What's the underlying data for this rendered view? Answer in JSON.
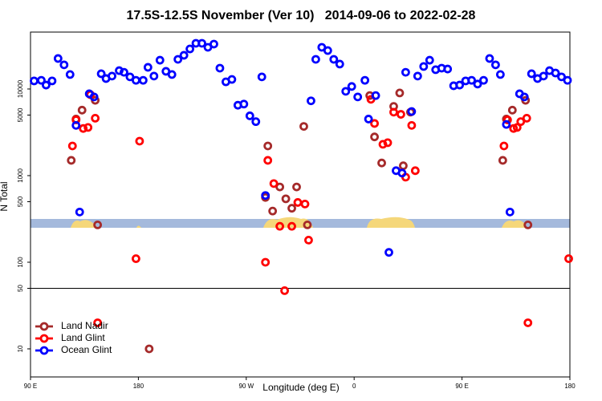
{
  "chart_data": {
    "type": "scatter",
    "title": "17.5S-12.5S November (Ver 10)   2014-09-06 to 2022-02-28",
    "xlabel": "Longitude (deg E)",
    "ylabel": "N Total",
    "xlim": [
      90,
      540
    ],
    "xticks": [
      {
        "value": 90,
        "label": "90 E"
      },
      {
        "value": 180,
        "label": "180"
      },
      {
        "value": 270,
        "label": "90 W"
      },
      {
        "value": 360,
        "label": "0"
      },
      {
        "value": 450,
        "label": "90 E"
      },
      {
        "value": 540,
        "label": "180"
      }
    ],
    "ylim": [
      4.74,
      45400
    ],
    "ylog": true,
    "yticks": [
      10,
      50,
      100,
      500,
      1000,
      5000,
      10000
    ],
    "reference_line": 50,
    "legend": "lower left",
    "series": [
      {
        "name": "Land Nadir",
        "color": "#a52a2a",
        "x": [
          124,
          128,
          133,
          144,
          146,
          189,
          286,
          288,
          292,
          298,
          303,
          308,
          312,
          318,
          321,
          373,
          377,
          383,
          393,
          398,
          401,
          407,
          484,
          487,
          492,
          503,
          505
        ],
        "values": [
          1500,
          4500,
          5700,
          7400,
          270,
          10,
          560,
          2200,
          390,
          740,
          540,
          420,
          740,
          3700,
          270,
          8400,
          2800,
          1400,
          6300,
          9000,
          1300,
          5400,
          1500,
          4500,
          5700,
          7400,
          270
        ]
      },
      {
        "name": "Land Glint",
        "color": "#ff0000",
        "x": [
          125,
          128,
          134,
          138,
          140,
          144,
          146,
          178,
          181,
          286,
          288,
          293,
          298,
          302,
          308,
          313,
          319,
          322,
          374,
          377,
          384,
          388,
          393,
          399,
          403,
          408,
          411,
          485,
          488,
          493,
          496,
          499,
          504,
          505,
          539
        ],
        "values": [
          2200,
          4400,
          3500,
          3600,
          8600,
          4600,
          20,
          110,
          2500,
          100,
          1500,
          810,
          260,
          47,
          260,
          490,
          470,
          180,
          7600,
          4000,
          2300,
          2400,
          5400,
          5100,
          960,
          3800,
          1140,
          2200,
          4400,
          3500,
          3600,
          4200,
          4600,
          20,
          110
        ]
      },
      {
        "name": "Ocean Glint",
        "color": "#0000ff",
        "x": [
          93,
          99,
          103,
          108,
          113,
          118,
          123,
          128,
          131,
          139,
          143,
          149,
          153,
          158,
          164,
          168,
          173,
          178,
          184,
          188,
          193,
          198,
          203,
          208,
          213,
          218,
          223,
          228,
          233,
          238,
          243,
          248,
          253,
          258,
          263,
          268,
          273,
          278,
          283,
          286,
          324,
          328,
          333,
          338,
          343,
          348,
          353,
          358,
          363,
          369,
          372,
          378,
          389,
          395,
          400,
          403,
          408,
          413,
          418,
          423,
          428,
          433,
          438,
          443,
          448,
          453,
          458,
          463,
          468,
          473,
          478,
          482,
          487,
          490,
          498,
          502,
          508,
          513,
          518,
          523,
          528,
          533,
          538
        ],
        "values": [
          12400,
          12600,
          11100,
          12400,
          22500,
          19000,
          14700,
          3800,
          380,
          8800,
          8100,
          15000,
          13200,
          14100,
          16300,
          15600,
          13800,
          12600,
          12600,
          17800,
          14100,
          21500,
          16000,
          14700,
          22000,
          24500,
          29000,
          33700,
          33700,
          30300,
          33000,
          17400,
          12100,
          12900,
          6500,
          6700,
          4900,
          4200,
          13800,
          590,
          7300,
          22000,
          30300,
          27800,
          22000,
          19400,
          9400,
          10700,
          8100,
          12600,
          4500,
          8400,
          130,
          1140,
          1070,
          15600,
          5500,
          14100,
          18200,
          21500,
          16700,
          17400,
          17000,
          10900,
          11100,
          12400,
          12600,
          11400,
          12600,
          22500,
          19000,
          14700,
          3900,
          380,
          8800,
          8100,
          15000,
          13200,
          14100,
          16300,
          15300,
          13800,
          12600
        ]
      }
    ]
  }
}
